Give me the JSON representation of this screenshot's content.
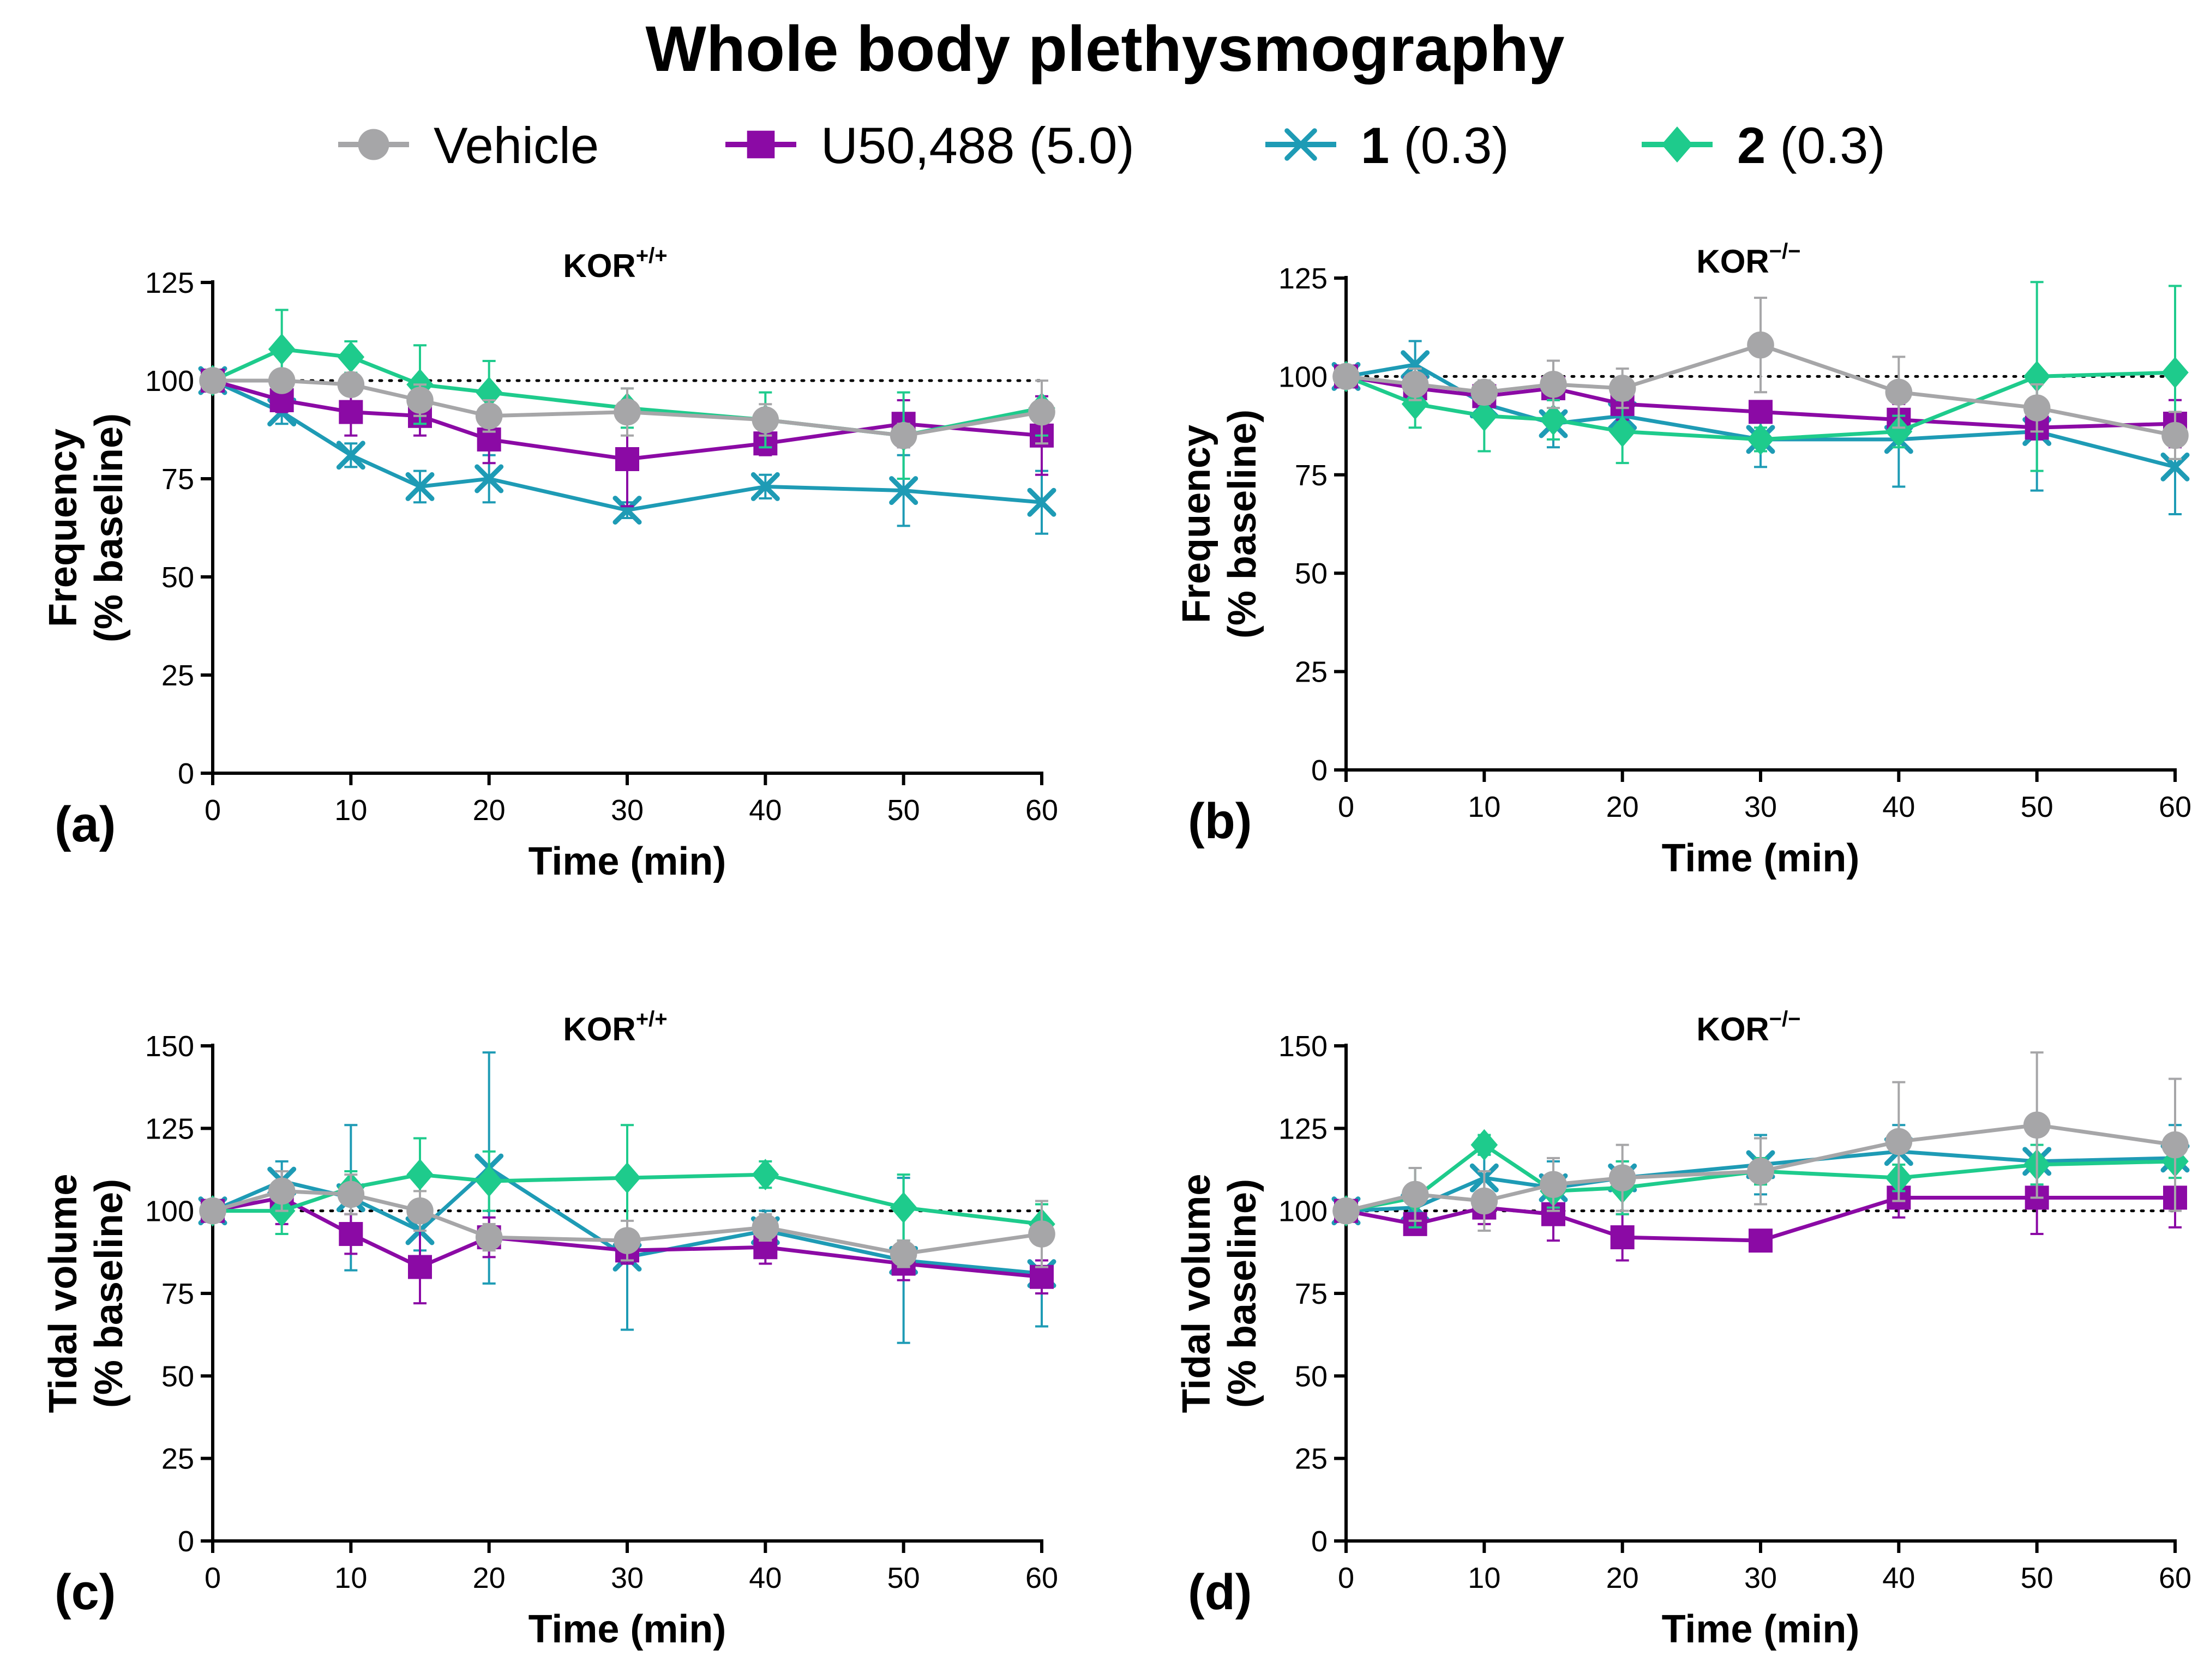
{
  "figure_title": "Whole body plethysmography",
  "colors": {
    "vehicle": "#a6a6a8",
    "u50488": "#8b0aa5",
    "cmpd1": "#1e9bb5",
    "cmpd2": "#1ecb8c"
  },
  "legend": [
    {
      "key": "vehicle",
      "bold": "",
      "text": "Vehicle",
      "marker": "circle"
    },
    {
      "key": "u50488",
      "bold": "",
      "text": "U50,488 (5.0)",
      "marker": "square"
    },
    {
      "key": "cmpd1",
      "bold": "1",
      "text": " (0.3)",
      "marker": "x"
    },
    {
      "key": "cmpd2",
      "bold": "2",
      "text": " (0.3)",
      "marker": "diamond"
    }
  ],
  "chart_data": [
    {
      "type": "line",
      "panel": "(a)",
      "title": "KOR",
      "title_sup": "+/+",
      "xlabel": "Time (min)",
      "ylabel": [
        "Frequency",
        "(% baseline)"
      ],
      "xlim": [
        0,
        60
      ],
      "ylim": [
        0,
        125
      ],
      "xticks": [
        0,
        10,
        20,
        30,
        40,
        50,
        60
      ],
      "yticks": [
        0,
        25,
        50,
        75,
        100,
        125
      ],
      "reference_y": 100,
      "x": [
        0,
        5,
        10,
        15,
        20,
        30,
        40,
        50,
        60
      ],
      "series": [
        {
          "key": "vehicle",
          "name": "Vehicle",
          "values": [
            100,
            100,
            99,
            95,
            91,
            92,
            90,
            86,
            92
          ],
          "errors": [
            0,
            2,
            2,
            4,
            4,
            6,
            4,
            3,
            8
          ]
        },
        {
          "key": "u50488",
          "name": "U50,488 (5.0)",
          "values": [
            100,
            95,
            92,
            91,
            85,
            80,
            84,
            89,
            86
          ],
          "errors": [
            0,
            3,
            6,
            5,
            6,
            12,
            3,
            6,
            10
          ]
        },
        {
          "key": "cmpd1",
          "name": "1 (0.3)",
          "values": [
            100,
            92,
            81,
            73,
            75,
            67,
            73,
            72,
            69
          ],
          "errors": [
            0,
            3,
            3,
            4,
            6,
            2,
            3,
            9,
            8
          ]
        },
        {
          "key": "cmpd2",
          "name": "2 (0.3)",
          "values": [
            100,
            108,
            106,
            99,
            97,
            93,
            90,
            86,
            93
          ],
          "errors": [
            0,
            10,
            4,
            10,
            8,
            5,
            7,
            11,
            7
          ]
        }
      ]
    },
    {
      "type": "line",
      "panel": "(b)",
      "title": "KOR",
      "title_sup": "−/−",
      "xlabel": "Time (min)",
      "ylabel": [
        "Frequency",
        "(% baseline)"
      ],
      "xlim": [
        0,
        60
      ],
      "ylim": [
        0,
        125
      ],
      "xticks": [
        0,
        10,
        20,
        30,
        40,
        50,
        60
      ],
      "yticks": [
        0,
        25,
        50,
        75,
        100,
        125
      ],
      "reference_y": 100,
      "x": [
        0,
        5,
        10,
        15,
        20,
        30,
        40,
        50,
        60
      ],
      "series": [
        {
          "key": "vehicle",
          "name": "Vehicle",
          "values": [
            100,
            98,
            96,
            98,
            97,
            108,
            96,
            92,
            85
          ],
          "errors": [
            0,
            4,
            3,
            6,
            5,
            12,
            9,
            6,
            6
          ]
        },
        {
          "key": "u50488",
          "name": "U50,488 (5.0)",
          "values": [
            100,
            97,
            95,
            97,
            93,
            91,
            89,
            87,
            88
          ],
          "errors": [
            0,
            2,
            3,
            3,
            4,
            2,
            4,
            3,
            6
          ]
        },
        {
          "key": "cmpd1",
          "name": "1 (0.3)",
          "values": [
            100,
            103,
            93,
            88,
            90,
            84,
            84,
            86,
            77
          ],
          "errors": [
            0,
            6,
            4,
            6,
            4,
            7,
            12,
            15,
            12
          ]
        },
        {
          "key": "cmpd2",
          "name": "2 (0.3)",
          "values": [
            100,
            93,
            90,
            89,
            86,
            84,
            86,
            100,
            101
          ],
          "errors": [
            0,
            6,
            9,
            5,
            8,
            3,
            4,
            24,
            22
          ]
        }
      ]
    },
    {
      "type": "line",
      "panel": "(c)",
      "title": "KOR",
      "title_sup": "+/+",
      "xlabel": "Time (min)",
      "ylabel": [
        "Tidal volume",
        "(% baseline)"
      ],
      "xlim": [
        0,
        60
      ],
      "ylim": [
        0,
        150
      ],
      "xticks": [
        0,
        10,
        20,
        30,
        40,
        50,
        60
      ],
      "yticks": [
        0,
        25,
        50,
        75,
        100,
        125,
        150
      ],
      "reference_y": 100,
      "x": [
        0,
        5,
        10,
        15,
        20,
        30,
        40,
        50,
        60
      ],
      "series": [
        {
          "key": "vehicle",
          "name": "Vehicle",
          "values": [
            100,
            106,
            105,
            100,
            92,
            91,
            95,
            87,
            93
          ],
          "errors": [
            0,
            6,
            6,
            6,
            4,
            6,
            4,
            4,
            10
          ]
        },
        {
          "key": "u50488",
          "name": "U50,488 (5.0)",
          "values": [
            100,
            104,
            93,
            83,
            92,
            88,
            89,
            84,
            80
          ],
          "errors": [
            0,
            8,
            6,
            11,
            6,
            4,
            5,
            5,
            5
          ]
        },
        {
          "key": "cmpd1",
          "name": "1 (0.3)",
          "values": [
            100,
            109,
            104,
            94,
            113,
            86,
            94,
            85,
            81
          ],
          "errors": [
            0,
            6,
            22,
            6,
            35,
            22,
            6,
            25,
            16
          ]
        },
        {
          "key": "cmpd2",
          "name": "2 (0.3)",
          "values": [
            100,
            100,
            107,
            111,
            109,
            110,
            111,
            101,
            96
          ],
          "errors": [
            0,
            7,
            5,
            11,
            9,
            16,
            4,
            10,
            6
          ]
        }
      ]
    },
    {
      "type": "line",
      "panel": "(d)",
      "title": "KOR",
      "title_sup": "−/−",
      "xlabel": "Time (min)",
      "ylabel": [
        "Tidal volume",
        "(% baseline)"
      ],
      "xlim": [
        0,
        60
      ],
      "ylim": [
        0,
        150
      ],
      "xticks": [
        0,
        10,
        20,
        30,
        40,
        50,
        60
      ],
      "yticks": [
        0,
        25,
        50,
        75,
        100,
        125,
        150
      ],
      "reference_y": 100,
      "x": [
        0,
        5,
        10,
        15,
        20,
        30,
        40,
        50,
        60
      ],
      "series": [
        {
          "key": "vehicle",
          "name": "Vehicle",
          "values": [
            100,
            105,
            103,
            108,
            110,
            112,
            121,
            126,
            120
          ],
          "errors": [
            0,
            8,
            9,
            8,
            10,
            10,
            18,
            22,
            20
          ]
        },
        {
          "key": "u50488",
          "name": "U50,488 (5.0)",
          "values": [
            100,
            96,
            101,
            99,
            92,
            91,
            104,
            104,
            104
          ],
          "errors": [
            0,
            3,
            5,
            8,
            7,
            2,
            6,
            11,
            9
          ]
        },
        {
          "key": "cmpd1",
          "name": "1 (0.3)",
          "values": [
            100,
            101,
            110,
            107,
            110,
            114,
            118,
            115,
            116
          ],
          "errors": [
            0,
            3,
            7,
            8,
            5,
            9,
            8,
            10,
            10
          ]
        },
        {
          "key": "cmpd2",
          "name": "2 (0.3)",
          "values": [
            100,
            104,
            120,
            106,
            107,
            112,
            110,
            114,
            115
          ],
          "errors": [
            0,
            9,
            3,
            5,
            8,
            4,
            4,
            6,
            5
          ]
        }
      ]
    }
  ]
}
